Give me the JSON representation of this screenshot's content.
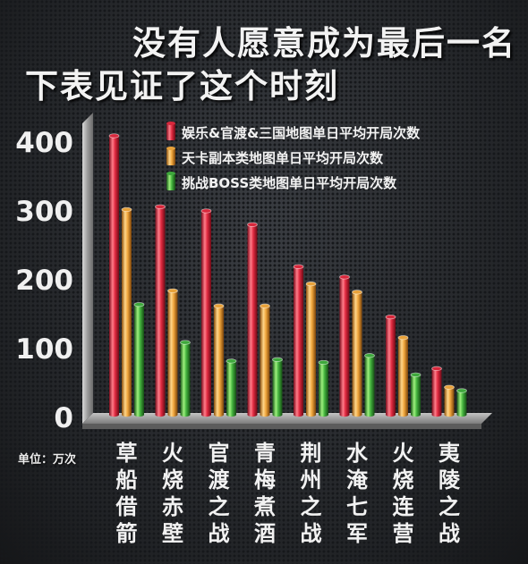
{
  "header": {
    "title_line1": "没有人愿意成为最后一名",
    "title_line2": "下表见证了这个时刻"
  },
  "unit_label": "单位：万次",
  "colors": {
    "series1": "#d8283c",
    "series2": "#e8a23a",
    "series3": "#3ea83c"
  },
  "chart_data": {
    "type": "bar",
    "categories": [
      "草船借箭",
      "火烧赤壁",
      "官渡之战",
      "青梅煮酒",
      "荆州之战",
      "水淹七军",
      "火烧连营",
      "夷陵之战"
    ],
    "series": [
      {
        "name": "娱乐&官渡&三国地图单日平均开局次数",
        "values": [
          405,
          302,
          296,
          276,
          215,
          200,
          142,
          67
        ]
      },
      {
        "name": "天卡副本类地图单日平均开局次数",
        "values": [
          298,
          180,
          158,
          158,
          190,
          178,
          112,
          40
        ]
      },
      {
        "name": "挑战BOSS类地图单日平均开局次数",
        "values": [
          160,
          105,
          78,
          80,
          76,
          86,
          58,
          35
        ]
      }
    ],
    "yticks": [
      0,
      100,
      200,
      300,
      400
    ],
    "ylim": [
      0,
      440
    ],
    "grid": false,
    "legend_position": "top-right"
  }
}
